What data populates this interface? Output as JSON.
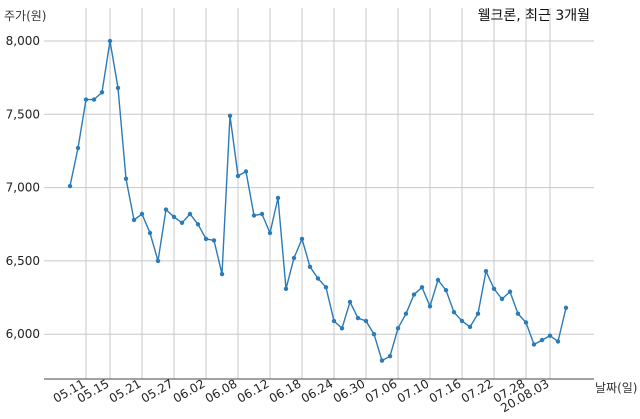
{
  "chart_data": {
    "type": "line",
    "title": "웰크론, 최근 3개월",
    "ylabel": "주가(원)",
    "xlabel": "날짜(일)",
    "ylim": [
      5700,
      8100
    ],
    "yticks": [
      6000,
      6500,
      7000,
      7500,
      8000
    ],
    "ytick_labels": [
      "6,000",
      "6,500",
      "7,000",
      "7,500",
      "8,000"
    ],
    "x_tick_labels": [
      "05.11",
      "05.15",
      "05.21",
      "05.27",
      "06.02",
      "06.08",
      "06.12",
      "06.18",
      "06.24",
      "06.30",
      "07.06",
      "07.10",
      "07.16",
      "07.22",
      "07.28",
      "20.08.03"
    ],
    "x_tick_index": [
      2,
      5,
      9,
      13,
      17,
      21,
      25,
      29,
      33,
      37,
      41,
      45,
      49,
      53,
      57,
      60
    ],
    "grid": true,
    "color": "#2b7bb9",
    "series": [
      {
        "values": [
          7010,
          7270,
          7600,
          7600,
          7650,
          8000,
          7680,
          7060,
          6780,
          6820,
          6690,
          6500,
          6850,
          6800,
          6760,
          6820,
          6750,
          6650,
          6640,
          6410,
          7490,
          7080,
          7110,
          6810,
          6820,
          6690,
          6930,
          6310,
          6520,
          6650,
          6460,
          6380,
          6320,
          6090,
          6040,
          6220,
          6110,
          6090,
          6000,
          5820,
          5850,
          6040,
          6140,
          6270,
          6320,
          6190,
          6370,
          6300,
          6150,
          6090,
          6050,
          6140,
          6430,
          6310,
          6240,
          6290,
          6140,
          6080,
          5930,
          5960,
          5990,
          5950,
          6180
        ]
      }
    ]
  }
}
